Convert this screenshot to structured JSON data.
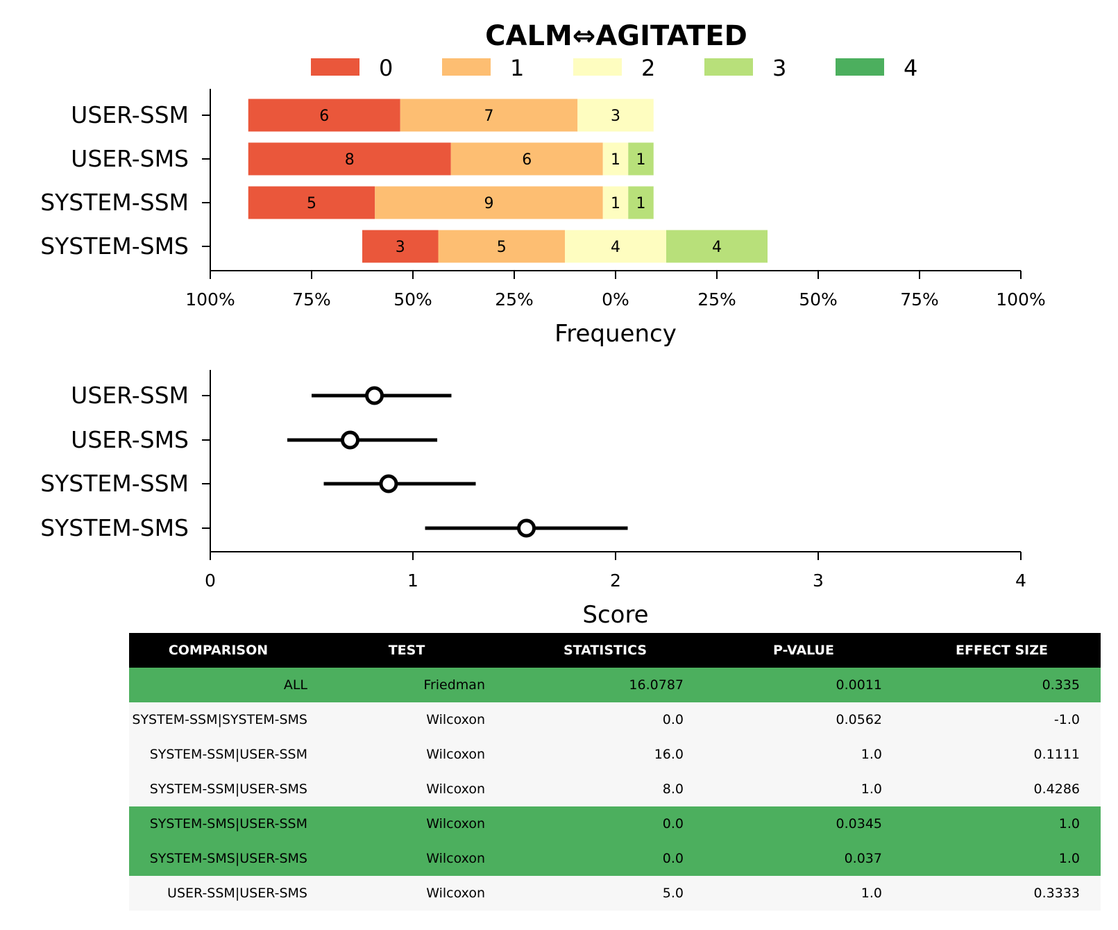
{
  "title": "CALM⇔AGITATED",
  "colors": {
    "0": "#ea573b",
    "1": "#fdbe72",
    "2": "#fefdc0",
    "3": "#b8e07a",
    "4": "#4caf5e",
    "significant_row": "#4caf5e",
    "row": "#f7f7f7",
    "header": "#000000"
  },
  "chart_data": [
    {
      "type": "bar",
      "subtype": "diverging-stacked-horizontal",
      "title": "CALM⇔AGITATED",
      "xlabel": "Frequency",
      "ylabel": "",
      "xlim": [
        -100,
        100
      ],
      "x_tick_labels": [
        "100%",
        "75%",
        "50%",
        "25%",
        "0%",
        "25%",
        "50%",
        "75%",
        "100%"
      ],
      "legend": [
        "0",
        "1",
        "2",
        "3",
        "4"
      ],
      "legend_placement": "top-center",
      "categories": [
        "USER-SSM",
        "USER-SMS",
        "SYSTEM-SSM",
        "SYSTEM-SMS"
      ],
      "series": [
        {
          "name": "0",
          "values": [
            6,
            8,
            5,
            3
          ]
        },
        {
          "name": "1",
          "values": [
            7,
            6,
            9,
            5
          ]
        },
        {
          "name": "2",
          "values": [
            3,
            1,
            1,
            4
          ]
        },
        {
          "name": "3",
          "values": [
            0,
            1,
            1,
            4
          ]
        },
        {
          "name": "4",
          "values": [
            0,
            0,
            0,
            0
          ]
        }
      ]
    },
    {
      "type": "scatter",
      "subtype": "point-with-interval",
      "xlabel": "Score",
      "ylabel": "",
      "xlim": [
        0,
        4
      ],
      "x_ticks": [
        0,
        1,
        2,
        3,
        4
      ],
      "categories": [
        "USER-SSM",
        "USER-SMS",
        "SYSTEM-SSM",
        "SYSTEM-SMS"
      ],
      "points": [
        {
          "category": "USER-SSM",
          "mean": 0.81,
          "low": 0.5,
          "high": 1.19
        },
        {
          "category": "USER-SMS",
          "mean": 0.69,
          "low": 0.38,
          "high": 1.12
        },
        {
          "category": "SYSTEM-SSM",
          "mean": 0.88,
          "low": 0.56,
          "high": 1.31
        },
        {
          "category": "SYSTEM-SMS",
          "mean": 1.56,
          "low": 1.06,
          "high": 2.06
        }
      ]
    },
    {
      "type": "table",
      "headers": [
        "COMPARISON",
        "TEST",
        "STATISTICS",
        "P-VALUE",
        "EFFECT SIZE"
      ],
      "rows": [
        {
          "cells": [
            "ALL",
            "Friedman",
            "16.0787",
            "0.0011",
            "0.335"
          ],
          "significant": true
        },
        {
          "cells": [
            "SYSTEM-SSM|SYSTEM-SMS",
            "Wilcoxon",
            "0.0",
            "0.0562",
            "-1.0"
          ],
          "significant": false
        },
        {
          "cells": [
            "SYSTEM-SSM|USER-SSM",
            "Wilcoxon",
            "16.0",
            "1.0",
            "0.1111"
          ],
          "significant": false
        },
        {
          "cells": [
            "SYSTEM-SSM|USER-SMS",
            "Wilcoxon",
            "8.0",
            "1.0",
            "0.4286"
          ],
          "significant": false
        },
        {
          "cells": [
            "SYSTEM-SMS|USER-SSM",
            "Wilcoxon",
            "0.0",
            "0.0345",
            "1.0"
          ],
          "significant": true
        },
        {
          "cells": [
            "SYSTEM-SMS|USER-SMS",
            "Wilcoxon",
            "0.0",
            "0.037",
            "1.0"
          ],
          "significant": true
        },
        {
          "cells": [
            "USER-SSM|USER-SMS",
            "Wilcoxon",
            "5.0",
            "1.0",
            "0.3333"
          ],
          "significant": false
        }
      ]
    }
  ]
}
